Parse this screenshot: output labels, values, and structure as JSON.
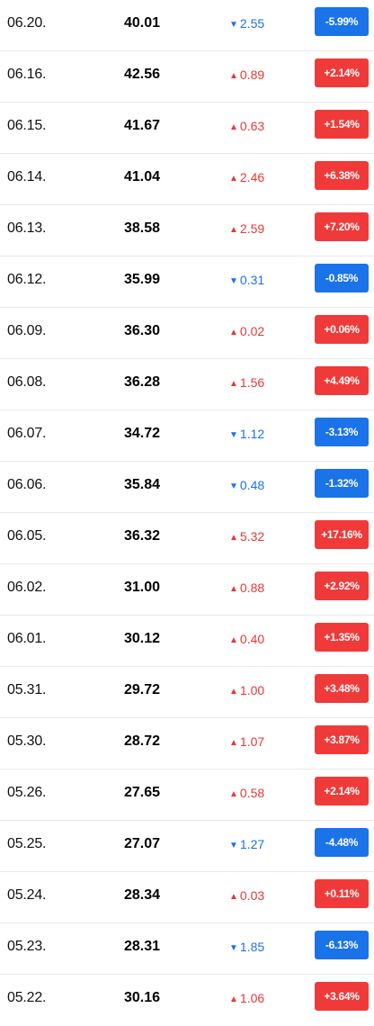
{
  "colors": {
    "up": "#f03a3a",
    "down": "#1a73e8",
    "divider": "#e9e9e9"
  },
  "icons": {
    "up": "triangle-up-icon",
    "down": "triangle-down-icon"
  },
  "rows": [
    {
      "date": "06.20.",
      "price": "40.01",
      "change": "2.55",
      "direction": "down",
      "percent": "-5.99%"
    },
    {
      "date": "06.16.",
      "price": "42.56",
      "change": "0.89",
      "direction": "up",
      "percent": "+2.14%"
    },
    {
      "date": "06.15.",
      "price": "41.67",
      "change": "0.63",
      "direction": "up",
      "percent": "+1.54%"
    },
    {
      "date": "06.14.",
      "price": "41.04",
      "change": "2.46",
      "direction": "up",
      "percent": "+6.38%"
    },
    {
      "date": "06.13.",
      "price": "38.58",
      "change": "2.59",
      "direction": "up",
      "percent": "+7.20%"
    },
    {
      "date": "06.12.",
      "price": "35.99",
      "change": "0.31",
      "direction": "down",
      "percent": "-0.85%"
    },
    {
      "date": "06.09.",
      "price": "36.30",
      "change": "0.02",
      "direction": "up",
      "percent": "+0.06%"
    },
    {
      "date": "06.08.",
      "price": "36.28",
      "change": "1.56",
      "direction": "up",
      "percent": "+4.49%"
    },
    {
      "date": "06.07.",
      "price": "34.72",
      "change": "1.12",
      "direction": "down",
      "percent": "-3.13%"
    },
    {
      "date": "06.06.",
      "price": "35.84",
      "change": "0.48",
      "direction": "down",
      "percent": "-1.32%"
    },
    {
      "date": "06.05.",
      "price": "36.32",
      "change": "5.32",
      "direction": "up",
      "percent": "+17.16%"
    },
    {
      "date": "06.02.",
      "price": "31.00",
      "change": "0.88",
      "direction": "up",
      "percent": "+2.92%"
    },
    {
      "date": "06.01.",
      "price": "30.12",
      "change": "0.40",
      "direction": "up",
      "percent": "+1.35%"
    },
    {
      "date": "05.31.",
      "price": "29.72",
      "change": "1.00",
      "direction": "up",
      "percent": "+3.48%"
    },
    {
      "date": "05.30.",
      "price": "28.72",
      "change": "1.07",
      "direction": "up",
      "percent": "+3.87%"
    },
    {
      "date": "05.26.",
      "price": "27.65",
      "change": "0.58",
      "direction": "up",
      "percent": "+2.14%"
    },
    {
      "date": "05.25.",
      "price": "27.07",
      "change": "1.27",
      "direction": "down",
      "percent": "-4.48%"
    },
    {
      "date": "05.24.",
      "price": "28.34",
      "change": "0.03",
      "direction": "up",
      "percent": "+0.11%"
    },
    {
      "date": "05.23.",
      "price": "28.31",
      "change": "1.85",
      "direction": "down",
      "percent": "-6.13%"
    },
    {
      "date": "05.22.",
      "price": "30.16",
      "change": "1.06",
      "direction": "up",
      "percent": "+3.64%"
    }
  ]
}
